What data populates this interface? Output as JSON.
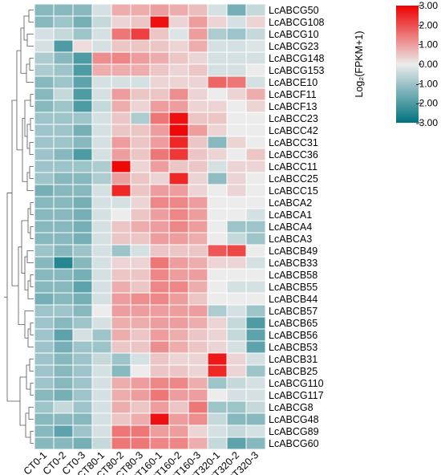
{
  "chart_data": {
    "type": "heatmap",
    "title": "",
    "columns": [
      "CT0-1",
      "CT0-2",
      "CT0-3",
      "CT80-1",
      "CT80-2",
      "CT80-3",
      "CT160-1",
      "CT160-2",
      "CT160-3",
      "CT320-1",
      "CT320-2",
      "CT320-3"
    ],
    "rows": [
      "LcABCG50",
      "LcABCG108",
      "LcABCG10",
      "LcABCG23",
      "LcABCG148",
      "LcABCG153",
      "LcABCE10",
      "LcABCF11",
      "LcABCF13",
      "LcABCC23",
      "LcABCC42",
      "LcABCC31",
      "LcABCC36",
      "LcABCC11",
      "LcABCC25",
      "LcABCC15",
      "LcABCA2",
      "LcABCA1",
      "LcABCA4",
      "LcABCA3",
      "LcABCB49",
      "LcABCB33",
      "LcABCB58",
      "LcABCB55",
      "LcABCB44",
      "LcABCB57",
      "LcABCB65",
      "LcABCB56",
      "LcABCB53",
      "LcABCB31",
      "LcABCB25",
      "LcABCG110",
      "LcABCG117",
      "LcABCG8",
      "LcABCG48",
      "LcABCG89",
      "LcABCG60"
    ],
    "values": [
      [
        -1.3,
        -1.3,
        -1.3,
        -0.3,
        0.8,
        0.8,
        1.0,
        0.8,
        0.6,
        -0.3,
        -1.5,
        -0.5
      ],
      [
        -1.3,
        -1.0,
        -1.5,
        -0.5,
        0.3,
        0.5,
        2.8,
        0.3,
        1.0,
        0.3,
        -0.3,
        0.3
      ],
      [
        -0.3,
        -0.5,
        -1.0,
        -0.3,
        1.5,
        2.2,
        0.5,
        -0.2,
        1.0,
        -0.8,
        -1.0,
        -0.5
      ],
      [
        -0.3,
        -2.0,
        0.2,
        -0.3,
        0.5,
        0.5,
        0.5,
        0.3,
        0.8,
        -0.3,
        -0.3,
        -0.2
      ],
      [
        -0.8,
        -1.3,
        -2.0,
        1.2,
        1.3,
        1.0,
        0.8,
        0.5,
        0.3,
        -0.3,
        -0.3,
        -0.3
      ],
      [
        -0.8,
        -1.0,
        -2.0,
        0.8,
        0.8,
        0.8,
        0.5,
        0.3,
        0.5,
        -0.3,
        -0.3,
        0.0
      ],
      [
        -1.3,
        -1.0,
        -1.8,
        -0.3,
        -0.3,
        -0.3,
        0.3,
        0.3,
        0.3,
        1.7,
        1.5,
        -0.3
      ],
      [
        -1.3,
        -0.5,
        -2.0,
        -0.3,
        1.0,
        0.5,
        0.5,
        1.2,
        0.3,
        0.0,
        0.3,
        0.8
      ],
      [
        -1.3,
        -1.0,
        -2.0,
        -0.5,
        0.8,
        0.3,
        1.0,
        1.0,
        0.3,
        0.3,
        0.0,
        0.3
      ],
      [
        -1.0,
        -1.0,
        -1.0,
        -0.3,
        0.5,
        -0.8,
        1.5,
        2.8,
        0.5,
        0.5,
        0.0,
        0.0
      ],
      [
        -1.0,
        -1.0,
        -1.5,
        -0.3,
        0.5,
        0.5,
        1.0,
        2.9,
        1.0,
        0.3,
        0.0,
        0.0
      ],
      [
        -1.0,
        -1.0,
        -1.3,
        -0.3,
        1.0,
        0.5,
        1.0,
        2.5,
        0.5,
        -1.3,
        0.3,
        0.0
      ],
      [
        -1.0,
        -1.3,
        -2.0,
        -0.3,
        1.0,
        0.5,
        1.5,
        2.3,
        0.5,
        0.3,
        0.0,
        0.5
      ],
      [
        -1.0,
        -1.0,
        -1.0,
        -0.8,
        2.9,
        0.3,
        1.0,
        0.5,
        0.5,
        -0.3,
        0.3,
        0.3
      ],
      [
        -1.0,
        -1.3,
        -1.3,
        -0.8,
        1.0,
        0.5,
        0.3,
        2.5,
        0.3,
        -1.2,
        0.3,
        0.0
      ],
      [
        -1.5,
        -1.3,
        -1.3,
        -0.3,
        2.5,
        0.5,
        1.0,
        1.0,
        0.3,
        0.0,
        0.3,
        0.0
      ],
      [
        -1.3,
        -1.3,
        -1.5,
        -0.3,
        -0.3,
        0.3,
        1.3,
        1.3,
        1.0,
        0.0,
        0.0,
        0.0
      ],
      [
        -1.3,
        -1.3,
        -1.5,
        -0.3,
        0.0,
        0.5,
        1.0,
        1.3,
        1.0,
        0.0,
        0.0,
        -0.3
      ],
      [
        -1.3,
        -1.3,
        -1.5,
        -0.3,
        0.5,
        0.8,
        1.0,
        1.3,
        1.0,
        0.0,
        -1.0,
        -1.0
      ],
      [
        -1.3,
        -1.3,
        -1.5,
        -0.3,
        0.5,
        0.5,
        1.0,
        1.0,
        0.8,
        0.0,
        -0.5,
        -1.0
      ],
      [
        -1.0,
        -1.3,
        -1.0,
        -0.3,
        -1.0,
        -0.3,
        0.5,
        0.5,
        0.5,
        1.9,
        2.1,
        0.0
      ],
      [
        -1.3,
        -2.5,
        -1.3,
        -0.3,
        0.3,
        0.3,
        1.5,
        1.0,
        0.8,
        0.3,
        0.3,
        -0.3
      ],
      [
        -1.3,
        -1.3,
        -1.5,
        -0.3,
        0.5,
        0.5,
        1.3,
        1.0,
        1.0,
        0.0,
        0.0,
        0.0
      ],
      [
        -1.3,
        -1.3,
        -1.8,
        -0.3,
        0.8,
        0.5,
        1.3,
        1.3,
        0.8,
        0.0,
        -0.3,
        -0.3
      ],
      [
        -1.5,
        -1.3,
        -1.5,
        -0.3,
        1.0,
        1.2,
        1.3,
        1.0,
        0.5,
        0.0,
        0.0,
        0.0
      ],
      [
        -1.0,
        -1.0,
        -1.3,
        0.0,
        1.0,
        1.0,
        1.0,
        1.0,
        1.0,
        -0.8,
        -0.3,
        -1.0
      ],
      [
        -1.0,
        -1.3,
        -1.0,
        -0.3,
        0.8,
        0.8,
        1.0,
        1.0,
        0.8,
        0.3,
        -0.5,
        -2.0
      ],
      [
        -1.0,
        -1.8,
        -0.3,
        -1.0,
        0.8,
        0.5,
        1.0,
        0.8,
        0.5,
        0.3,
        -0.5,
        -1.8
      ],
      [
        -1.0,
        -1.5,
        -1.0,
        -1.0,
        0.5,
        0.5,
        1.2,
        0.8,
        0.5,
        0.3,
        -0.3,
        -1.8
      ],
      [
        -1.0,
        -1.3,
        -1.0,
        -0.5,
        -1.0,
        -0.3,
        0.5,
        0.3,
        0.3,
        2.7,
        0.3,
        -0.3
      ],
      [
        -1.0,
        -1.3,
        -1.0,
        -0.3,
        -1.3,
        0.0,
        0.5,
        0.5,
        0.3,
        2.5,
        0.3,
        -1.0
      ],
      [
        -1.0,
        -1.3,
        -1.0,
        -0.3,
        0.8,
        1.0,
        1.3,
        1.3,
        0.8,
        -1.0,
        -0.5,
        -0.3
      ],
      [
        -1.3,
        -1.5,
        -1.0,
        -0.3,
        0.8,
        1.0,
        1.5,
        1.0,
        1.0,
        0.0,
        -0.3,
        -0.3
      ],
      [
        -1.0,
        -0.5,
        -1.0,
        -0.3,
        0.8,
        0.5,
        1.0,
        0.5,
        1.5,
        -1.0,
        -1.0,
        -0.5
      ],
      [
        -1.3,
        -1.3,
        -1.3,
        -0.3,
        0.5,
        0.8,
        2.8,
        1.0,
        1.2,
        -0.5,
        -1.3,
        -1.3
      ],
      [
        -1.3,
        -1.8,
        -1.0,
        -0.3,
        1.5,
        1.5,
        1.0,
        1.0,
        0.3,
        -0.3,
        -0.5,
        -0.3
      ],
      [
        -1.3,
        -1.3,
        -1.5,
        -0.5,
        1.5,
        1.5,
        1.3,
        1.3,
        0.8,
        -0.5,
        -1.8,
        -1.3
      ]
    ],
    "color_scale": {
      "min": -3.0,
      "max": 3.0,
      "colors": [
        "#00737f",
        "#ececec",
        "#ee0000"
      ],
      "ticks": [
        "3.00",
        "2.00",
        "1.00",
        "0.00",
        "-1.00",
        "-2.00",
        "-3.00"
      ],
      "label": "Log₂(FPKM+1)"
    },
    "row_dendrogram": true
  }
}
